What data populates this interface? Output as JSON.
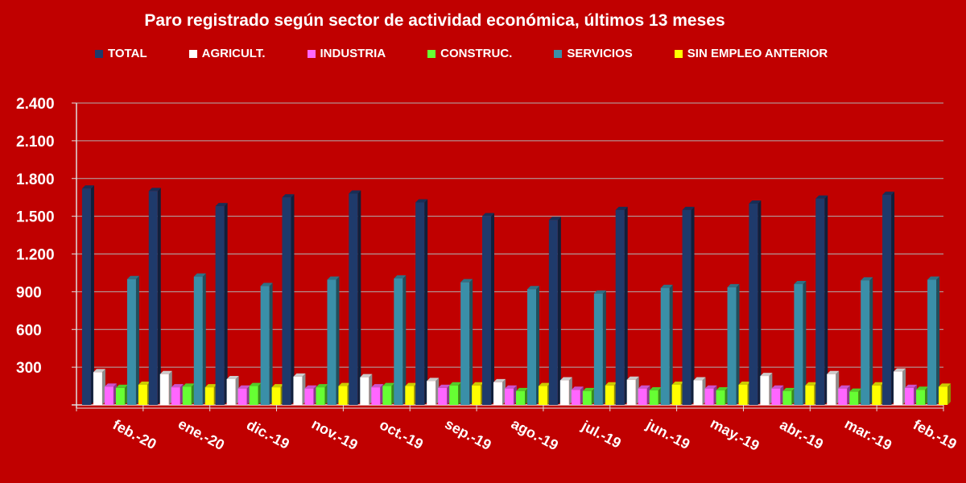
{
  "chart_data": {
    "type": "bar",
    "title": "Paro registrado según sector de actividad económica, últimos 13 meses",
    "categories": [
      "feb.-20",
      "ene.-20",
      "dic.-19",
      "nov.-19",
      "oct.-19",
      "sep.-19",
      "ago.-19",
      "jul.-19",
      "jun.-19",
      "may.-19",
      "abr.-19",
      "mar.-19",
      "feb.-19"
    ],
    "yticks": [
      "2.400",
      "2.100",
      "1.800",
      "1.500",
      "1.200",
      "900",
      "600",
      "300"
    ],
    "ytick_values": [
      2400,
      2100,
      1800,
      1500,
      1200,
      900,
      600,
      300
    ],
    "ylim": [
      0,
      2400
    ],
    "grid": true,
    "legend_position": "top",
    "series": [
      {
        "name": "TOTAL",
        "color": "#1f3a6b",
        "values": [
          1720,
          1700,
          1580,
          1650,
          1680,
          1610,
          1500,
          1470,
          1550,
          1550,
          1600,
          1640,
          1670
        ]
      },
      {
        "name": "AGRICULT.",
        "color": "#ffffff",
        "values": [
          260,
          245,
          205,
          225,
          220,
          190,
          180,
          195,
          200,
          195,
          230,
          245,
          265
        ]
      },
      {
        "name": "INDUSTRIA",
        "color": "#ff66ff",
        "values": [
          145,
          140,
          130,
          130,
          140,
          135,
          130,
          120,
          130,
          130,
          130,
          130,
          135
        ]
      },
      {
        "name": "CONSTRUC.",
        "color": "#66ff33",
        "values": [
          135,
          145,
          150,
          140,
          150,
          155,
          110,
          110,
          115,
          115,
          110,
          105,
          120
        ]
      },
      {
        "name": "SERVICIOS",
        "color": "#3a8fa8",
        "values": [
          1000,
          1020,
          945,
          995,
          1005,
          975,
          920,
          885,
          930,
          935,
          960,
          990,
          995
        ]
      },
      {
        "name": "SIN EMPLEO ANTERIOR",
        "color": "#ffff00",
        "values": [
          160,
          140,
          140,
          150,
          150,
          155,
          150,
          155,
          160,
          160,
          155,
          155,
          145
        ]
      }
    ]
  }
}
